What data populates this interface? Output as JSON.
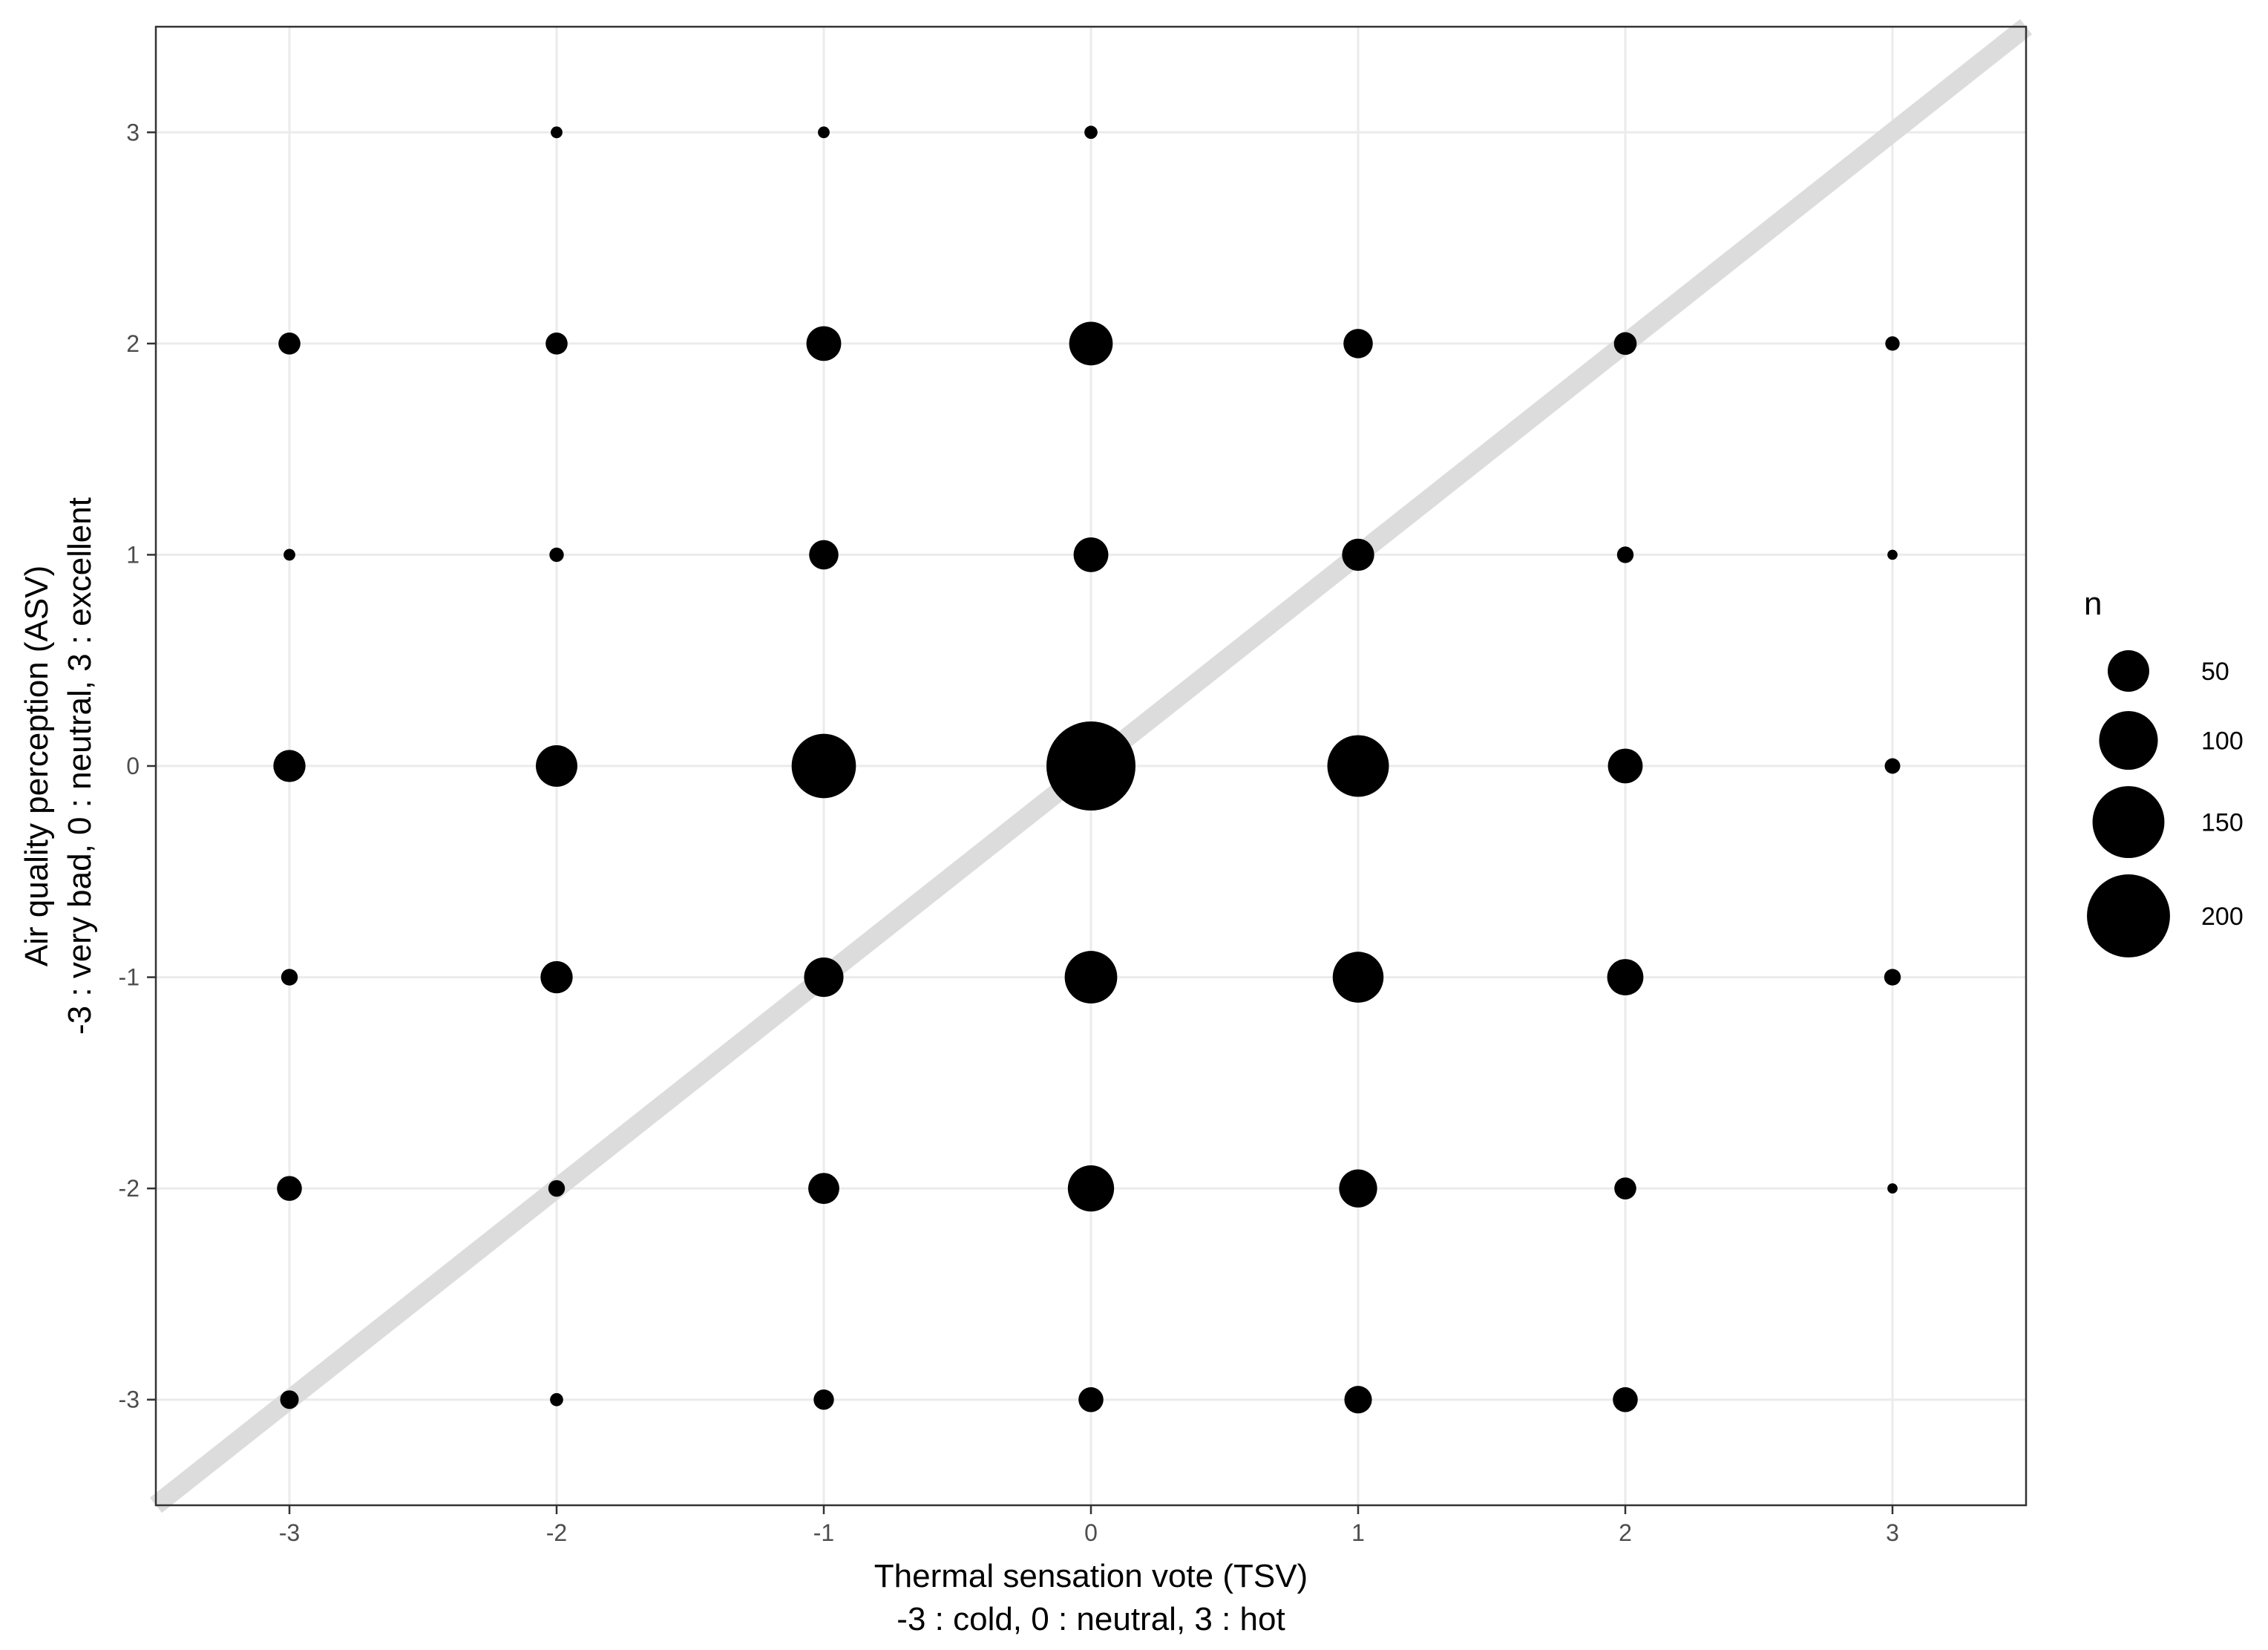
{
  "chart_data": {
    "type": "scatter",
    "subtype": "bubble",
    "xlabel": "Thermal sensation vote (TSV)",
    "xlabel_sub": "-3 : cold, 0 : neutral, 3 : hot",
    "ylabel": "Air quality perception (ASV)",
    "ylabel_sub": "-3 : very bad, 0 : neutral, 3 : excellent",
    "xlim": [
      -3.5,
      3.5
    ],
    "ylim": [
      -3.5,
      3.5
    ],
    "x_ticks": [
      "-3",
      "-2",
      "-1",
      "0",
      "1",
      "2",
      "3"
    ],
    "y_ticks": [
      "-3",
      "-2",
      "-1",
      "0",
      "1",
      "2",
      "3"
    ],
    "grid": true,
    "reference_line": {
      "type": "identity",
      "from": [
        -3.5,
        -3.5
      ],
      "to": [
        3.5,
        3.5
      ],
      "color": "#dcdcdc"
    },
    "point_color": "#000000",
    "size_legend": {
      "title": "n",
      "position": "right",
      "entries": [
        {
          "value": 50,
          "label": "50"
        },
        {
          "value": 100,
          "label": "100"
        },
        {
          "value": 150,
          "label": "150"
        },
        {
          "value": 200,
          "label": "200"
        }
      ]
    },
    "points": [
      {
        "x": -2,
        "y": 3,
        "n": 4
      },
      {
        "x": -1,
        "y": 3,
        "n": 4
      },
      {
        "x": 0,
        "y": 3,
        "n": 5
      },
      {
        "x": -3,
        "y": 2,
        "n": 14
      },
      {
        "x": -2,
        "y": 2,
        "n": 14
      },
      {
        "x": -1,
        "y": 2,
        "n": 35
      },
      {
        "x": 0,
        "y": 2,
        "n": 55
      },
      {
        "x": 1,
        "y": 2,
        "n": 25
      },
      {
        "x": 2,
        "y": 2,
        "n": 15
      },
      {
        "x": 3,
        "y": 2,
        "n": 6
      },
      {
        "x": -3,
        "y": 1,
        "n": 4
      },
      {
        "x": -2,
        "y": 1,
        "n": 6
      },
      {
        "x": -1,
        "y": 1,
        "n": 25
      },
      {
        "x": 0,
        "y": 1,
        "n": 35
      },
      {
        "x": 1,
        "y": 1,
        "n": 30
      },
      {
        "x": 2,
        "y": 1,
        "n": 8
      },
      {
        "x": 3,
        "y": 1,
        "n": 3
      },
      {
        "x": -3,
        "y": 0,
        "n": 30
      },
      {
        "x": -2,
        "y": 0,
        "n": 50
      },
      {
        "x": -1,
        "y": 0,
        "n": 120
      },
      {
        "x": 0,
        "y": 0,
        "n": 230
      },
      {
        "x": 1,
        "y": 0,
        "n": 110
      },
      {
        "x": 2,
        "y": 0,
        "n": 35
      },
      {
        "x": 3,
        "y": 0,
        "n": 7
      },
      {
        "x": -3,
        "y": -1,
        "n": 8
      },
      {
        "x": -2,
        "y": -1,
        "n": 30
      },
      {
        "x": -1,
        "y": -1,
        "n": 45
      },
      {
        "x": 0,
        "y": -1,
        "n": 80
      },
      {
        "x": 1,
        "y": -1,
        "n": 75
      },
      {
        "x": 2,
        "y": -1,
        "n": 38
      },
      {
        "x": 3,
        "y": -1,
        "n": 8
      },
      {
        "x": -3,
        "y": -2,
        "n": 18
      },
      {
        "x": -2,
        "y": -2,
        "n": 8
      },
      {
        "x": -1,
        "y": -2,
        "n": 28
      },
      {
        "x": 0,
        "y": -2,
        "n": 62
      },
      {
        "x": 1,
        "y": -2,
        "n": 42
      },
      {
        "x": 2,
        "y": -2,
        "n": 14
      },
      {
        "x": 3,
        "y": -2,
        "n": 3
      },
      {
        "x": -3,
        "y": -3,
        "n": 10
      },
      {
        "x": -2,
        "y": -3,
        "n": 5
      },
      {
        "x": -1,
        "y": -3,
        "n": 12
      },
      {
        "x": 0,
        "y": -3,
        "n": 18
      },
      {
        "x": 1,
        "y": -3,
        "n": 22
      },
      {
        "x": 2,
        "y": -3,
        "n": 18
      }
    ]
  }
}
